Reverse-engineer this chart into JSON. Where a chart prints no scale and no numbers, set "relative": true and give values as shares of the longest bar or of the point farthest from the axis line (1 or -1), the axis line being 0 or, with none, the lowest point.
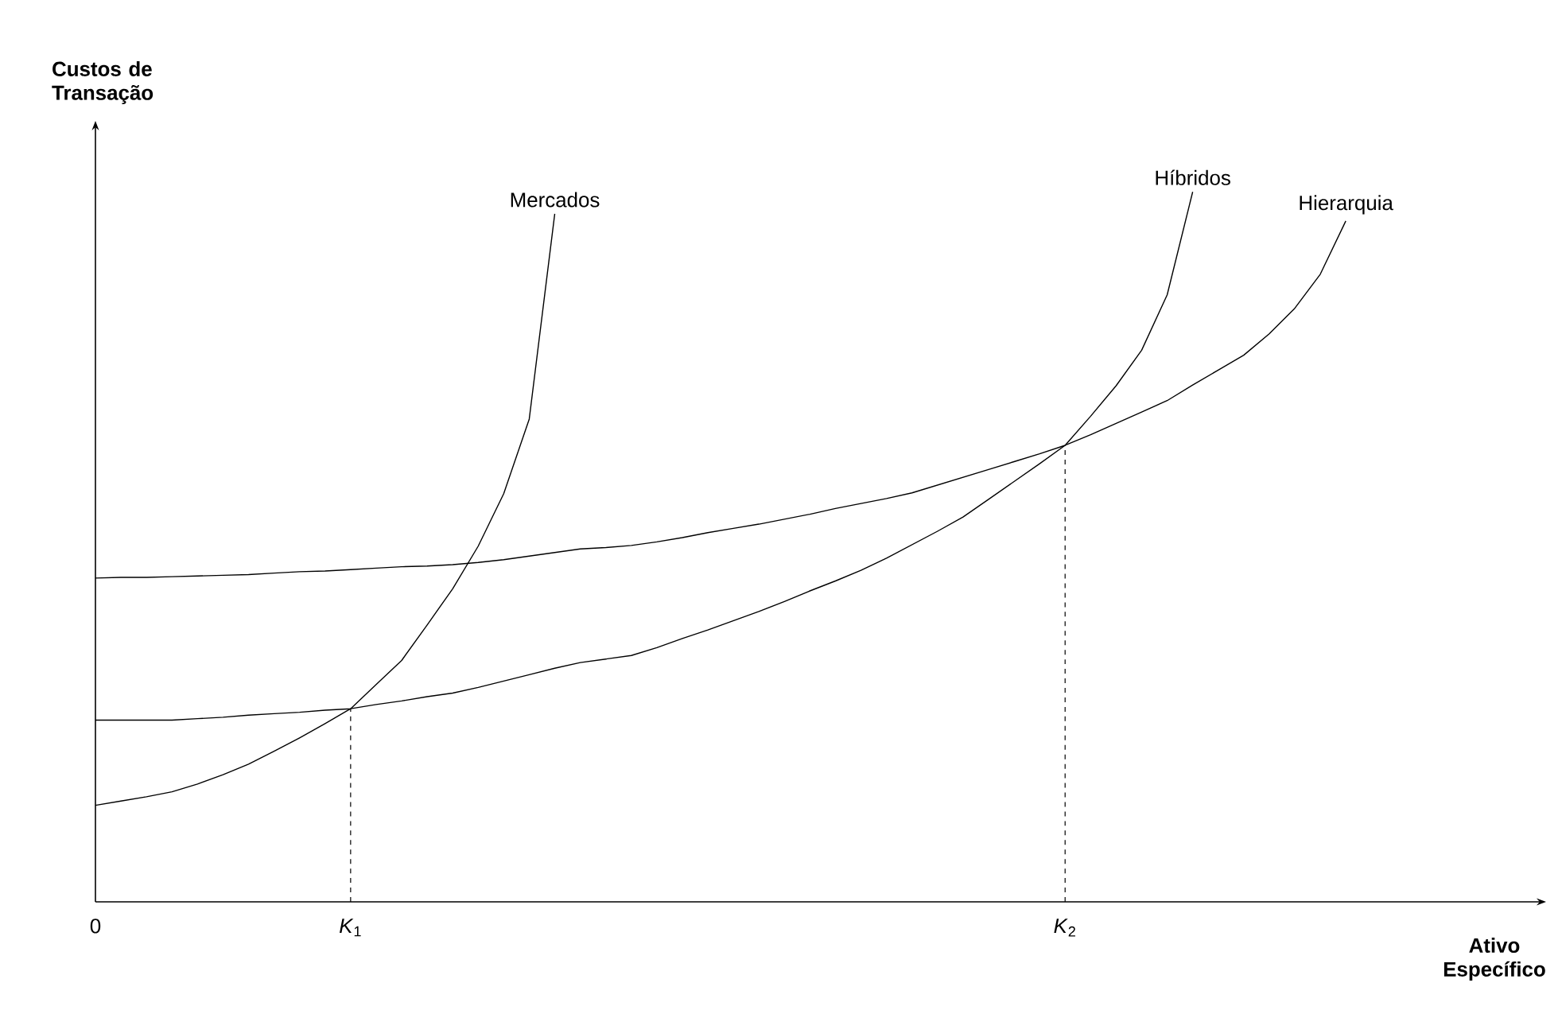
{
  "chart_data": {
    "type": "line",
    "relative": true,
    "xlabel": "Ativo Específico",
    "ylabel": "Custos de Transação",
    "legend": false,
    "grid": false,
    "marker": "none",
    "categories": [
      "0",
      null,
      null,
      null,
      null,
      null,
      null,
      null,
      null,
      null,
      "*K*$_{1}$",
      null,
      null,
      null,
      null,
      null,
      null,
      null,
      null,
      null,
      null,
      null,
      null,
      null,
      null,
      null,
      null,
      null,
      null,
      null,
      null,
      null,
      null,
      null,
      null,
      null,
      null,
      null,
      "*K*$_{2}$",
      null,
      null,
      null,
      null,
      null,
      null,
      null,
      null,
      null,
      null,
      null,
      null,
      null,
      null,
      null,
      null,
      null,
      null
    ],
    "series": [
      {
        "name": "Mercados",
        "color": "#000000",
        "values": [
          0.136,
          0.142,
          0.148,
          0.155,
          0.166,
          0.179,
          0.194,
          0.212,
          0.231,
          0.251,
          0.272,
          0.306,
          0.34,
          0.39,
          0.441,
          0.501,
          0.575,
          0.68,
          0.969,
          null,
          null,
          null,
          null,
          null,
          null,
          null,
          null,
          null,
          null,
          null,
          null,
          null,
          null,
          null,
          null,
          null,
          null,
          null,
          null,
          null,
          null,
          null,
          null,
          null,
          null,
          null,
          null,
          null,
          null,
          null,
          null,
          null,
          null,
          null,
          null,
          null,
          null
        ]
      },
      {
        "name": "Híbridos",
        "color": "#000000",
        "values": [
          0.256,
          0.256,
          0.256,
          0.256,
          0.258,
          0.26,
          0.263,
          0.265,
          0.267,
          0.27,
          0.272,
          0.278,
          0.283,
          0.289,
          0.294,
          0.302,
          0.311,
          0.32,
          0.329,
          0.337,
          0.342,
          0.347,
          0.358,
          0.371,
          0.383,
          0.396,
          0.409,
          0.423,
          0.438,
          0.452,
          0.467,
          0.484,
          0.503,
          0.522,
          0.542,
          0.567,
          0.592,
          0.617,
          0.643,
          0.684,
          0.727,
          0.777,
          0.855,
          1.0,
          null,
          null,
          null,
          null,
          null,
          null,
          null,
          null,
          null,
          null,
          null,
          null,
          null
        ]
      },
      {
        "name": "Hierarquia",
        "color": "#000000",
        "values": [
          0.456,
          0.457,
          0.457,
          0.458,
          0.459,
          0.46,
          0.461,
          0.463,
          0.465,
          0.466,
          0.468,
          0.47,
          0.472,
          0.473,
          0.475,
          0.478,
          0.482,
          0.487,
          0.492,
          0.497,
          0.499,
          0.502,
          0.507,
          0.513,
          0.52,
          0.526,
          0.532,
          0.539,
          0.546,
          0.554,
          0.561,
          0.568,
          0.576,
          0.587,
          0.598,
          0.609,
          0.62,
          0.631,
          0.643,
          0.658,
          0.674,
          0.69,
          0.706,
          0.728,
          0.749,
          0.77,
          0.8,
          0.836,
          0.884,
          0.959,
          null,
          null,
          null,
          null,
          null,
          null,
          null
        ]
      }
    ],
    "ref_lines": [
      {
        "axis": "x",
        "value": "*K*$_{1}$",
        "color": "#000000",
        "line_style": "dashed"
      },
      {
        "axis": "x",
        "value": "*K*$_{2}$",
        "color": "#000000",
        "line_style": "dashed"
      }
    ]
  }
}
